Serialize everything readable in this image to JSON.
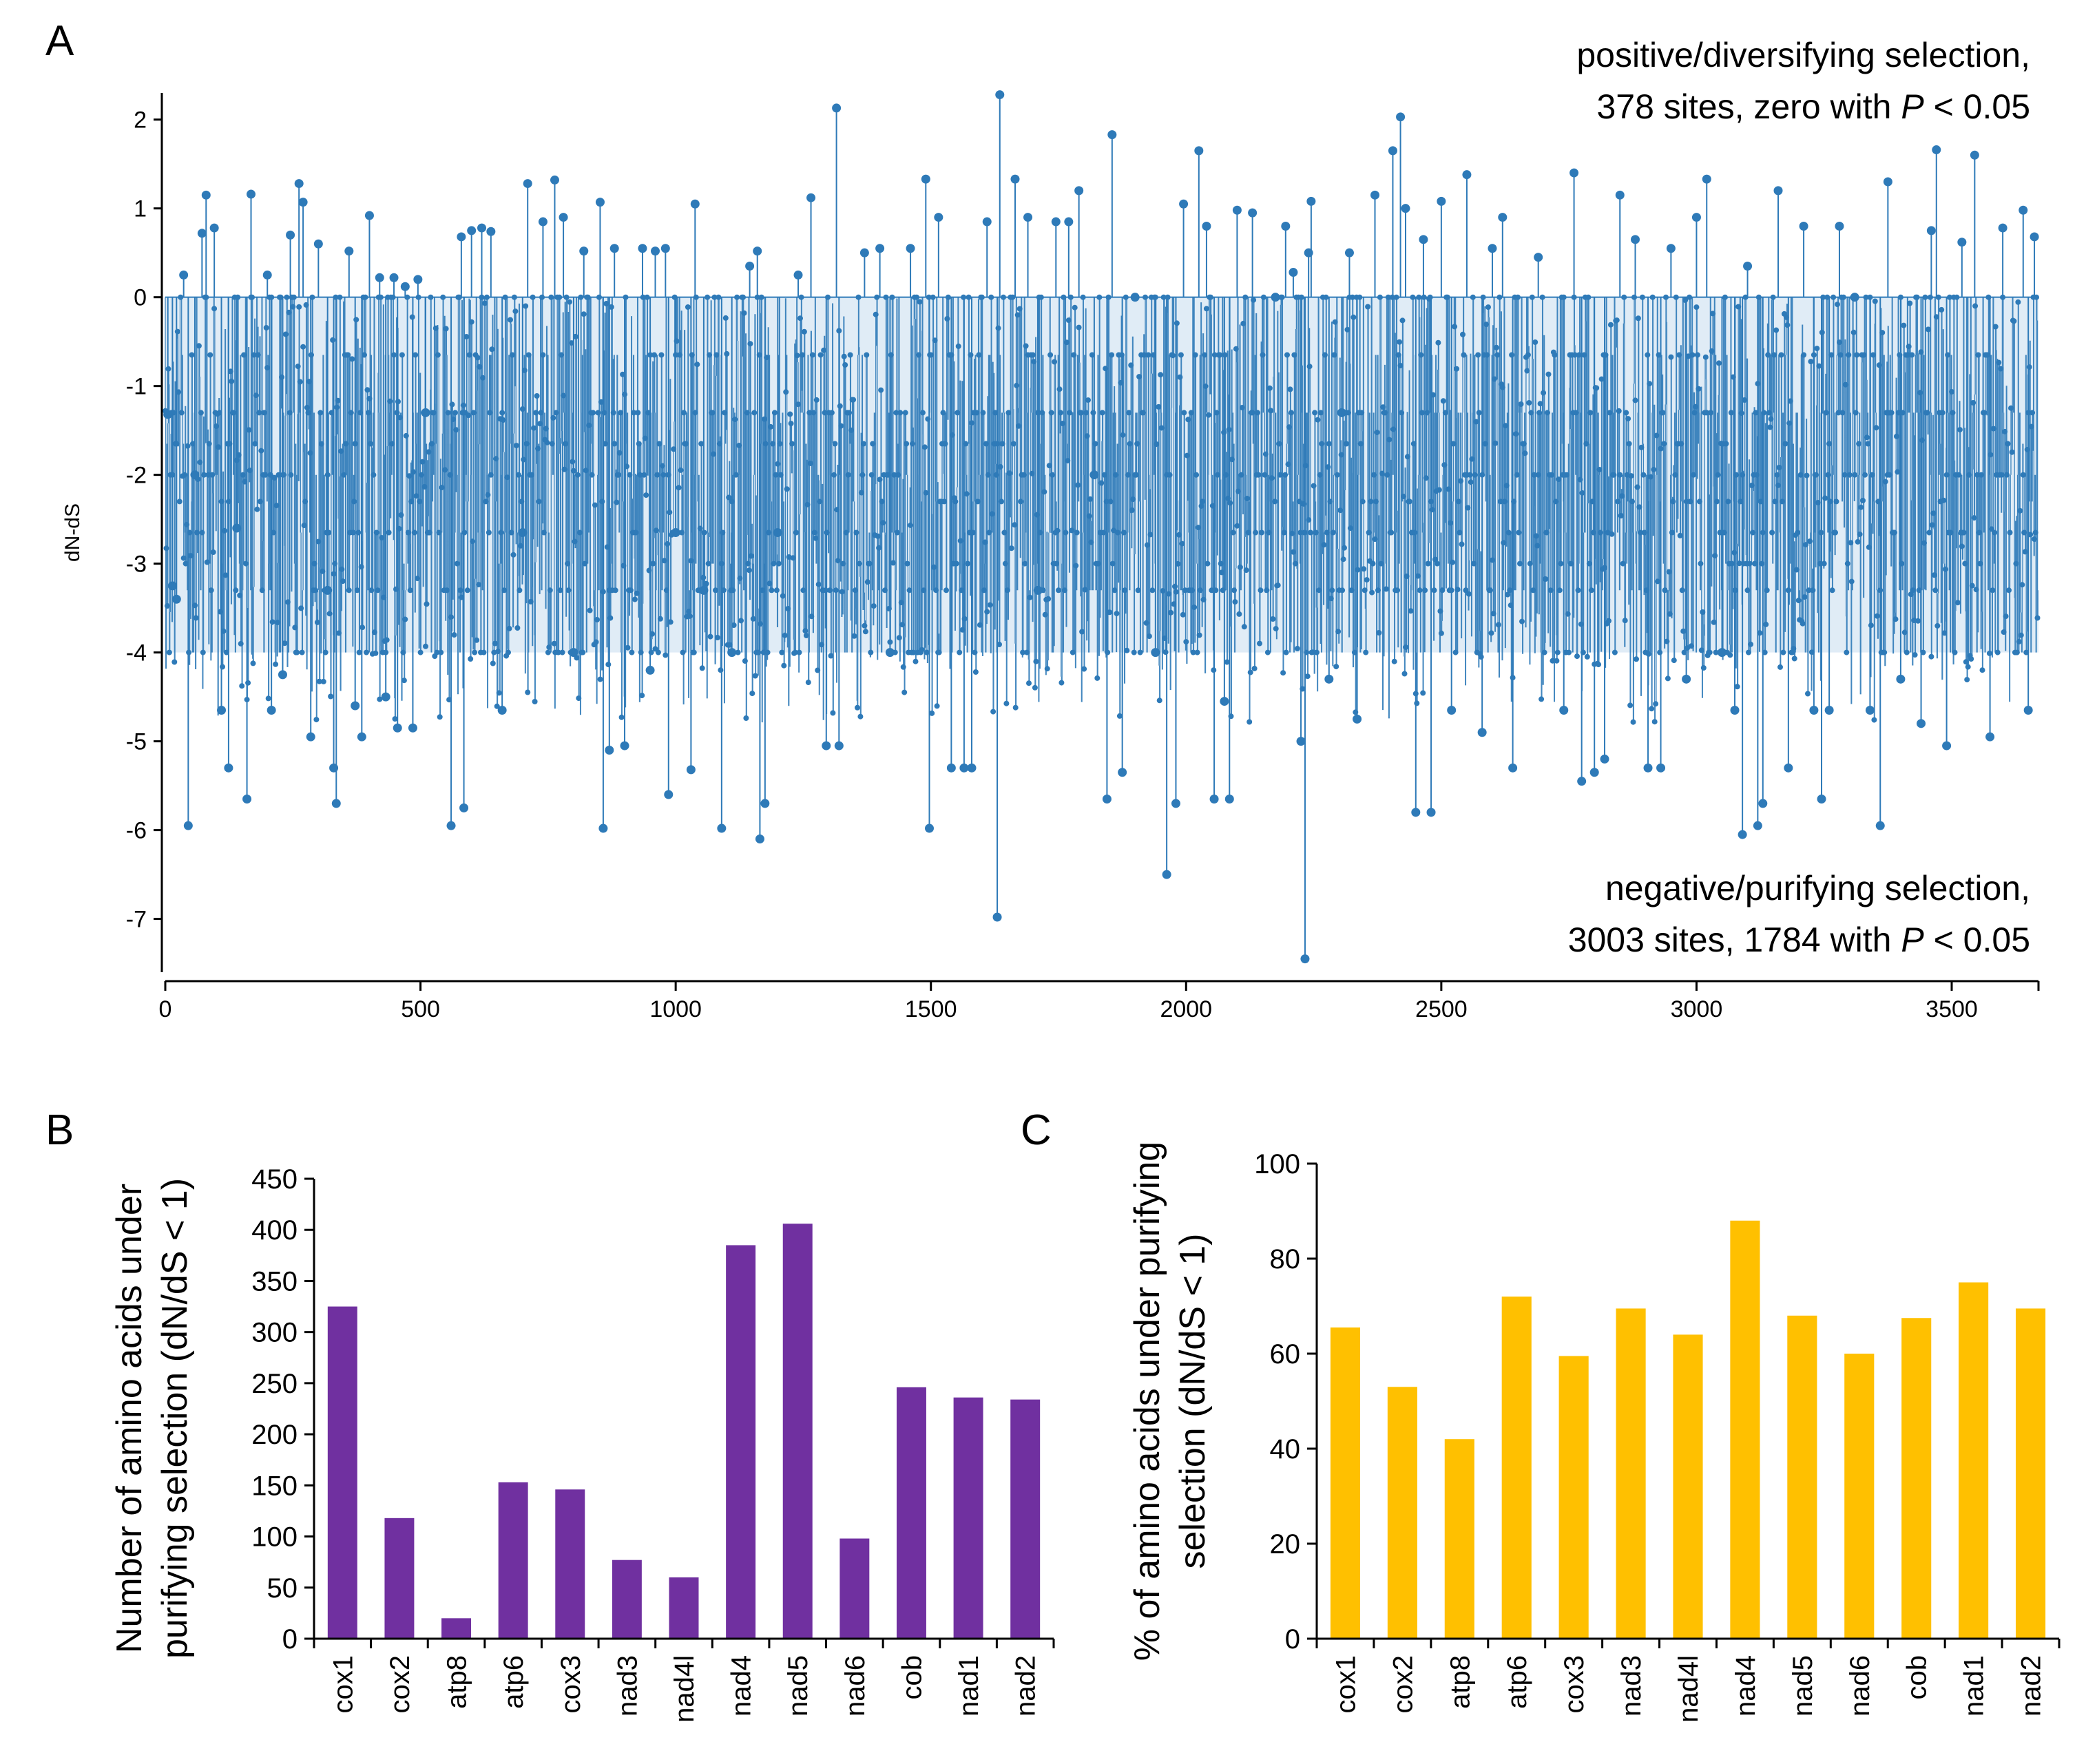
{
  "panels": {
    "a": {
      "letter": "A"
    },
    "b": {
      "letter": "B"
    },
    "c": {
      "letter": "C"
    }
  },
  "chart_data": [
    {
      "id": "A",
      "type": "line",
      "xlabel": "",
      "ylabel": "dN-dS",
      "xlim": [
        0,
        3670
      ],
      "ylim": [
        -7.6,
        2.3
      ],
      "xticks": [
        0,
        500,
        1000,
        1500,
        2000,
        2500,
        3000,
        3500
      ],
      "yticks": [
        2,
        1,
        0,
        -1,
        -2,
        -3,
        -4,
        -5,
        -6,
        -7
      ],
      "color": "#2e7ab8",
      "site_count": 3670,
      "series": [
        {
          "name": "dN-dS per codon site",
          "points": [
            [
              5,
              -1.32
            ],
            [
              14,
              -3.25
            ],
            [
              22,
              -3.4
            ],
            [
              36,
              0.25
            ],
            [
              45,
              -5.95
            ],
            [
              58,
              -2.0
            ],
            [
              72,
              0.72
            ],
            [
              80,
              1.15
            ],
            [
              96,
              0.78
            ],
            [
              110,
              -4.65
            ],
            [
              124,
              -5.3
            ],
            [
              140,
              -2.6
            ],
            [
              160,
              -5.65
            ],
            [
              168,
              1.16
            ],
            [
              200,
              0.25
            ],
            [
              208,
              -4.65
            ],
            [
              230,
              -4.25
            ],
            [
              245,
              0.7
            ],
            [
              262,
              1.28
            ],
            [
              270,
              1.07
            ],
            [
              285,
              -4.95
            ],
            [
              300,
              0.6
            ],
            [
              318,
              -3.3
            ],
            [
              330,
              -5.3
            ],
            [
              335,
              -5.7
            ],
            [
              360,
              0.52
            ],
            [
              372,
              -4.6
            ],
            [
              385,
              -4.95
            ],
            [
              400,
              0.92
            ],
            [
              420,
              0.22
            ],
            [
              432,
              -4.5
            ],
            [
              448,
              0.22
            ],
            [
              455,
              -4.85
            ],
            [
              470,
              0.12
            ],
            [
              485,
              -4.85
            ],
            [
              495,
              0.2
            ],
            [
              510,
              -1.3
            ],
            [
              560,
              -5.95
            ],
            [
              580,
              0.68
            ],
            [
              585,
              -5.75
            ],
            [
              600,
              0.75
            ],
            [
              620,
              0.78
            ],
            [
              638,
              0.74
            ],
            [
              660,
              -4.65
            ],
            [
              700,
              -2.65
            ],
            [
              710,
              1.28
            ],
            [
              740,
              0.85
            ],
            [
              763,
              1.32
            ],
            [
              780,
              0.9
            ],
            [
              800,
              -4.0
            ],
            [
              820,
              0.52
            ],
            [
              852,
              1.07
            ],
            [
              858,
              -5.98
            ],
            [
              870,
              -5.1
            ],
            [
              880,
              0.55
            ],
            [
              900,
              -5.05
            ],
            [
              935,
              0.55
            ],
            [
              950,
              -4.2
            ],
            [
              960,
              0.52
            ],
            [
              980,
              0.55
            ],
            [
              986,
              -5.6
            ],
            [
              1000,
              -2.65
            ],
            [
              1030,
              -5.32
            ],
            [
              1038,
              1.05
            ],
            [
              1055,
              -3.3
            ],
            [
              1090,
              -5.98
            ],
            [
              1110,
              -4.0
            ],
            [
              1145,
              0.35
            ],
            [
              1160,
              0.52
            ],
            [
              1165,
              -6.1
            ],
            [
              1175,
              -5.7
            ],
            [
              1200,
              -2.65
            ],
            [
              1240,
              0.25
            ],
            [
              1265,
              1.12
            ],
            [
              1295,
              -5.05
            ],
            [
              1315,
              2.13
            ],
            [
              1320,
              -5.05
            ],
            [
              1370,
              0.5
            ],
            [
              1400,
              0.55
            ],
            [
              1420,
              -4.0
            ],
            [
              1460,
              0.55
            ],
            [
              1490,
              1.33
            ],
            [
              1497,
              -5.98
            ],
            [
              1515,
              0.9
            ],
            [
              1540,
              -5.3
            ],
            [
              1565,
              -5.3
            ],
            [
              1580,
              -5.3
            ],
            [
              1610,
              0.85
            ],
            [
              1630,
              -6.98
            ],
            [
              1635,
              2.28
            ],
            [
              1665,
              1.33
            ],
            [
              1690,
              0.9
            ],
            [
              1710,
              -3.3
            ],
            [
              1745,
              0.85
            ],
            [
              1770,
              0.85
            ],
            [
              1790,
              1.2
            ],
            [
              1820,
              -2.0
            ],
            [
              1845,
              -5.65
            ],
            [
              1855,
              1.83
            ],
            [
              1875,
              -5.35
            ],
            [
              1900,
              0.0
            ],
            [
              1940,
              -4.0
            ],
            [
              1962,
              -6.5
            ],
            [
              1980,
              -5.7
            ],
            [
              1995,
              1.05
            ],
            [
              2025,
              1.65
            ],
            [
              2040,
              0.8
            ],
            [
              2055,
              -5.65
            ],
            [
              2075,
              -4.55
            ],
            [
              2085,
              -5.65
            ],
            [
              2100,
              0.98
            ],
            [
              2130,
              0.95
            ],
            [
              2175,
              0.0
            ],
            [
              2195,
              0.8
            ],
            [
              2210,
              0.28
            ],
            [
              2225,
              -5.0
            ],
            [
              2233,
              -7.45
            ],
            [
              2240,
              0.5
            ],
            [
              2245,
              1.08
            ],
            [
              2280,
              -4.3
            ],
            [
              2305,
              -1.3
            ],
            [
              2320,
              0.5
            ],
            [
              2335,
              -4.75
            ],
            [
              2370,
              1.15
            ],
            [
              2405,
              1.65
            ],
            [
              2420,
              2.03
            ],
            [
              2430,
              1.0
            ],
            [
              2450,
              -5.8
            ],
            [
              2465,
              0.65
            ],
            [
              2480,
              -5.8
            ],
            [
              2500,
              1.08
            ],
            [
              2520,
              -4.65
            ],
            [
              2550,
              1.38
            ],
            [
              2580,
              -4.9
            ],
            [
              2600,
              0.55
            ],
            [
              2620,
              0.9
            ],
            [
              2640,
              -5.3
            ],
            [
              2690,
              0.45
            ],
            [
              2740,
              -4.65
            ],
            [
              2760,
              1.4
            ],
            [
              2775,
              -5.45
            ],
            [
              2800,
              -5.35
            ],
            [
              2820,
              -5.2
            ],
            [
              2850,
              1.15
            ],
            [
              2880,
              0.65
            ],
            [
              2905,
              -5.3
            ],
            [
              2930,
              -5.3
            ],
            [
              2950,
              0.55
            ],
            [
              2980,
              -4.3
            ],
            [
              3000,
              0.9
            ],
            [
              3020,
              1.33
            ],
            [
              3050,
              -4.0
            ],
            [
              3075,
              -4.65
            ],
            [
              3090,
              -6.05
            ],
            [
              3100,
              0.35
            ],
            [
              3120,
              -5.95
            ],
            [
              3130,
              -5.7
            ],
            [
              3160,
              1.2
            ],
            [
              3180,
              -5.3
            ],
            [
              3210,
              0.8
            ],
            [
              3230,
              -4.65
            ],
            [
              3245,
              -5.65
            ],
            [
              3260,
              -4.65
            ],
            [
              3280,
              0.8
            ],
            [
              3310,
              0.0
            ],
            [
              3340,
              -4.65
            ],
            [
              3360,
              -5.95
            ],
            [
              3375,
              1.3
            ],
            [
              3400,
              -4.3
            ],
            [
              3440,
              -4.8
            ],
            [
              3460,
              0.75
            ],
            [
              3470,
              1.66
            ],
            [
              3490,
              -5.05
            ],
            [
              3520,
              0.62
            ],
            [
              3545,
              1.6
            ],
            [
              3575,
              -4.95
            ],
            [
              3600,
              0.78
            ],
            [
              3640,
              0.98
            ],
            [
              3650,
              -4.65
            ],
            [
              3662,
              0.68
            ]
          ]
        }
      ],
      "annotations": [
        {
          "position": "top-right",
          "lines": [
            "positive/diversifying selection,",
            "378 sites, zero with ",
            "P",
            " < 0.05"
          ]
        },
        {
          "position": "bottom-right",
          "lines": [
            "negative/purifying selection,",
            "3003 sites, 1784 with ",
            "P",
            " < 0.05"
          ]
        }
      ],
      "grid": false
    },
    {
      "id": "B",
      "type": "bar",
      "title": "",
      "ylabel": [
        "Number of amino acids under",
        "purifying selection (dN/dS < 1)"
      ],
      "xlabel": "",
      "categories": [
        "cox1",
        "cox2",
        "atp8",
        "atp6",
        "cox3",
        "nad3",
        "nad4l",
        "nad4",
        "nad5",
        "nad6",
        "cob",
        "nad1",
        "nad2"
      ],
      "values": [
        325,
        118,
        20,
        153,
        146,
        77,
        60,
        385,
        406,
        98,
        246,
        236,
        234
      ],
      "ylim": [
        0,
        450
      ],
      "yticks": [
        0,
        50,
        100,
        150,
        200,
        250,
        300,
        350,
        400,
        450
      ],
      "color": "#7030a0",
      "grid": false
    },
    {
      "id": "C",
      "type": "bar",
      "title": "",
      "ylabel": [
        "% of amino acids under purifying",
        "selection (dN/dS < 1)"
      ],
      "xlabel": "",
      "categories": [
        "cox1",
        "cox2",
        "atp8",
        "atp6",
        "cox3",
        "nad3",
        "nad4l",
        "nad4",
        "nad5",
        "nad6",
        "cob",
        "nad1",
        "nad2"
      ],
      "values": [
        65.5,
        53,
        42,
        72,
        59.5,
        69.5,
        64,
        88,
        68,
        60,
        67.5,
        75,
        69.5
      ],
      "ylim": [
        0,
        100
      ],
      "yticks": [
        0,
        20,
        40,
        60,
        80,
        100
      ],
      "color": "#ffc000",
      "grid": false
    }
  ]
}
